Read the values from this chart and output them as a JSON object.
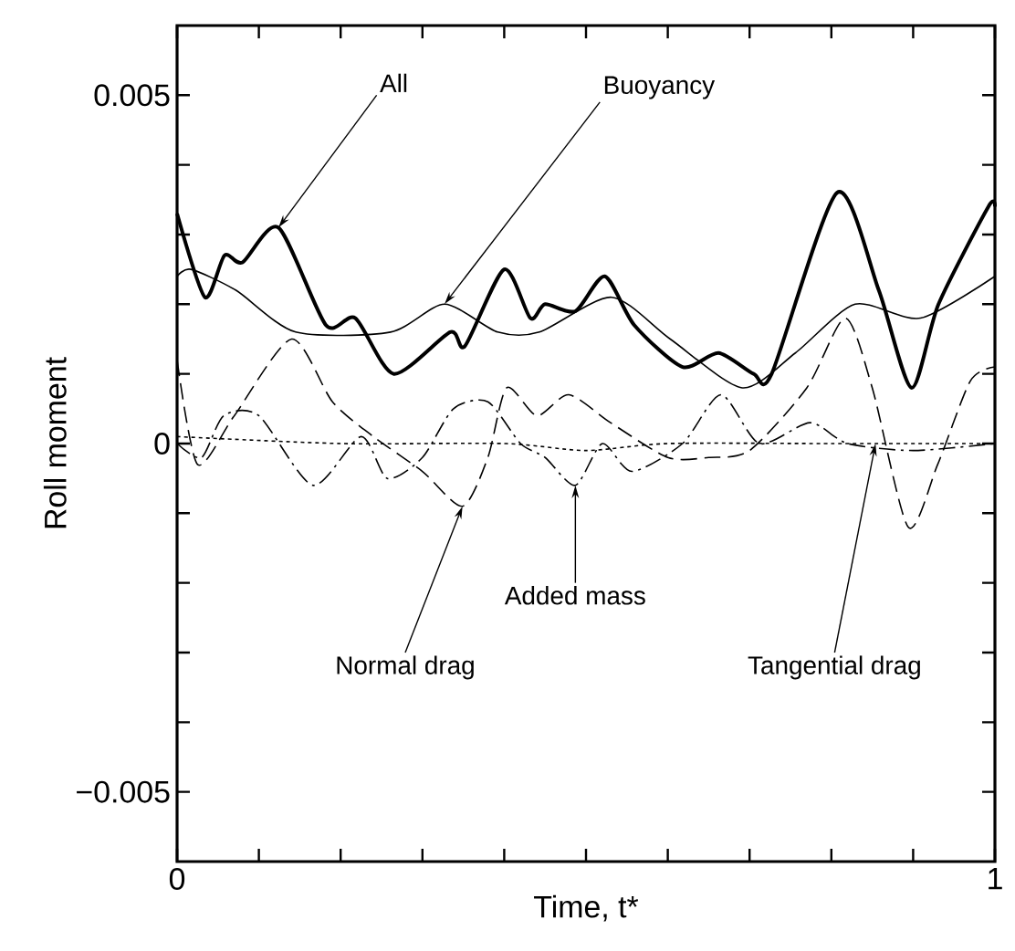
{
  "chart_data": {
    "type": "line",
    "xlabel": "Time, t*",
    "ylabel": "Roll moment",
    "xlim": [
      0,
      1
    ],
    "ylim": [
      -0.006,
      0.006
    ],
    "xticks": [
      0,
      {
        "value": 0.1,
        "label": null
      },
      {
        "value": 0.2,
        "label": null
      },
      {
        "value": 0.3,
        "label": null
      },
      {
        "value": 0.4,
        "label": null
      },
      {
        "value": 0.5,
        "label": null
      },
      {
        "value": 0.6,
        "label": null
      },
      {
        "value": 0.7,
        "label": null
      },
      {
        "value": 0.8,
        "label": null
      },
      {
        "value": 0.9,
        "label": null
      },
      1
    ],
    "yticks": [
      {
        "value": -0.005,
        "label": "−0.005"
      },
      {
        "value": -0.004,
        "label": null
      },
      {
        "value": -0.003,
        "label": null
      },
      {
        "value": -0.002,
        "label": null
      },
      {
        "value": -0.001,
        "label": null
      },
      0,
      {
        "value": 0.001,
        "label": null
      },
      {
        "value": 0.002,
        "label": null
      },
      {
        "value": 0.003,
        "label": null
      },
      {
        "value": 0.004,
        "label": null
      },
      0.005
    ],
    "series": [
      {
        "color": "#000000",
        "line_style": "solid",
        "x": [
          0,
          0.034,
          0.058,
          0.08,
          0.124,
          0.182,
          0.218,
          0.265,
          0.334,
          0.352,
          0.4,
          0.432,
          0.45,
          0.487,
          0.523,
          0.559,
          0.618,
          0.662,
          0.705,
          0.727,
          0.807,
          0.858,
          0.898,
          0.931,
          0.992,
          1
        ],
        "values": [
          0.0033,
          0.0021,
          0.0027,
          0.0026,
          0.0031,
          0.0017,
          0.0018,
          0.001,
          0.0016,
          0.0014,
          0.0025,
          0.0018,
          0.002,
          0.0019,
          0.0024,
          0.0017,
          0.0011,
          0.0013,
          0.001,
          0.001,
          0.0036,
          0.0022,
          0.0008,
          0.002,
          0.0034,
          0.0034
        ]
      },
      {
        "color": "#000000",
        "line_style": "solid",
        "x": [
          0,
          0.017,
          0.072,
          0.145,
          0.261,
          0.327,
          0.392,
          0.443,
          0.531,
          0.603,
          0.691,
          0.756,
          0.829,
          0.909,
          1
        ],
        "values": [
          0.0024,
          0.0025,
          0.0022,
          0.0016,
          0.0016,
          0.002,
          0.0016,
          0.0016,
          0.0021,
          0.0015,
          0.0008,
          0.0013,
          0.002,
          0.0018,
          0.0024
        ]
      },
      {
        "color": "#000000",
        "line_style": "dashed",
        "x": [
          0,
          0.025,
          0.07,
          0.14,
          0.19,
          0.24,
          0.3,
          0.349,
          0.38,
          0.403,
          0.44,
          0.479,
          0.53,
          0.6,
          0.65,
          0.7,
          0.77,
          0.817,
          0.85,
          0.894,
          0.93,
          0.97,
          1
        ],
        "values": [
          0.0012,
          -0.0003,
          0.0004,
          0.0015,
          0.0006,
          0.0001,
          -0.0004,
          -0.0009,
          -0.0002,
          0.0008,
          0.0004,
          0.0007,
          0.0003,
          -0.0002,
          -0.0002,
          -0.0001,
          0.0008,
          0.0018,
          0.0008,
          -0.0012,
          -0.0003,
          0.0009,
          0.0011
        ]
      },
      {
        "color": "#000000",
        "line_style": "dashdot",
        "x": [
          0,
          0.03,
          0.057,
          0.1,
          0.166,
          0.225,
          0.257,
          0.3,
          0.338,
          0.38,
          0.42,
          0.45,
          0.487,
          0.52,
          0.556,
          0.618,
          0.665,
          0.712,
          0.774,
          0.82,
          0.9,
          1
        ],
        "values": [
          0.0,
          -0.0002,
          0.0004,
          0.0004,
          -0.0006,
          0.0001,
          -0.0005,
          -0.0002,
          0.0005,
          0.0006,
          0.0,
          -0.0002,
          -0.0006,
          0.0,
          -0.0004,
          0.0,
          0.0007,
          0.0,
          0.0003,
          0.0,
          -0.0001,
          0.0
        ]
      },
      {
        "color": "#000000",
        "line_style": "dotted",
        "x": [
          0,
          0.2,
          0.4,
          0.5,
          0.6,
          0.8,
          1
        ],
        "values": [
          0.0001,
          0.0,
          0.0,
          -0.0001,
          0.0,
          0.0,
          0.0
        ]
      }
    ],
    "annotations": [
      {
        "text": "All",
        "x": 0.124,
        "y": 0.0031
      },
      {
        "text": "Buoyancy",
        "x": 0.327,
        "y": 0.002
      },
      {
        "text": "Added mass",
        "x": 0.487,
        "y": -0.0006
      },
      {
        "text": "Normal drag",
        "x": 0.349,
        "y": -0.0009
      },
      {
        "text": "Tangential drag",
        "x": 0.854,
        "y": 0.0
      }
    ]
  }
}
